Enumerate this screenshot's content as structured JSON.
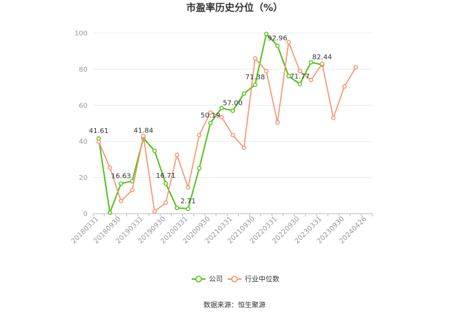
{
  "chart_data": {
    "type": "line",
    "title": "市盈率历史分位（%）",
    "xlabel": "",
    "ylabel": "",
    "ylim": [
      0,
      100
    ],
    "yticks": [
      0,
      20,
      40,
      60,
      80,
      100
    ],
    "grid": true,
    "legend_position": "bottom",
    "x": [
      "20180331",
      "20180630",
      "20180930",
      "20181231",
      "20190331",
      "20190630",
      "20190930",
      "20191231",
      "20200331",
      "20200630",
      "20200930",
      "20201231",
      "20210331",
      "20210630",
      "20210930",
      "20211231",
      "20220331",
      "20220630",
      "20220930",
      "20221231",
      "20230331",
      "20230630",
      "20230930",
      "20231231",
      "20240426"
    ],
    "xtick_labels": [
      "20180331",
      "20180930",
      "20190331",
      "20190930",
      "20200331",
      "20200930",
      "20210331",
      "20210930",
      "20220331",
      "20220930",
      "20230331",
      "20230930",
      "20240426"
    ],
    "series": [
      {
        "name": "公司",
        "color": "#52c41a",
        "values": [
          41.61,
          0.5,
          16.63,
          18.0,
          41.84,
          34.8,
          16.71,
          3.2,
          2.71,
          25.2,
          50.19,
          58.5,
          57.0,
          66.5,
          71.38,
          99.5,
          92.96,
          76.2,
          71.77,
          83.8,
          82.44,
          null,
          null,
          null,
          null
        ]
      },
      {
        "name": "行业中位数",
        "color": "#f5926a",
        "values": [
          39.8,
          25.5,
          7.0,
          13.0,
          43.0,
          1.2,
          6.0,
          32.5,
          14.5,
          43.5,
          56.0,
          53.5,
          43.5,
          36.5,
          86.0,
          79.0,
          50.5,
          95.0,
          79.0,
          74.0,
          83.0,
          53.0,
          70.5,
          81.0,
          null
        ]
      }
    ],
    "data_labels": [
      {
        "series": 0,
        "index": 0,
        "text": "41.61"
      },
      {
        "series": 0,
        "index": 2,
        "text": "16.63"
      },
      {
        "series": 0,
        "index": 4,
        "text": "41.84"
      },
      {
        "series": 0,
        "index": 6,
        "text": "16.71"
      },
      {
        "series": 0,
        "index": 8,
        "text": "2.71"
      },
      {
        "series": 0,
        "index": 10,
        "text": "50.19"
      },
      {
        "series": 0,
        "index": 12,
        "text": "57.00"
      },
      {
        "series": 0,
        "index": 14,
        "text": "71.38"
      },
      {
        "series": 0,
        "index": 16,
        "text": "92.96"
      },
      {
        "series": 0,
        "index": 18,
        "text": "71.77"
      },
      {
        "series": 0,
        "index": 20,
        "text": "82.44"
      }
    ]
  },
  "footer": {
    "source": "数据来源：恒生聚源"
  }
}
